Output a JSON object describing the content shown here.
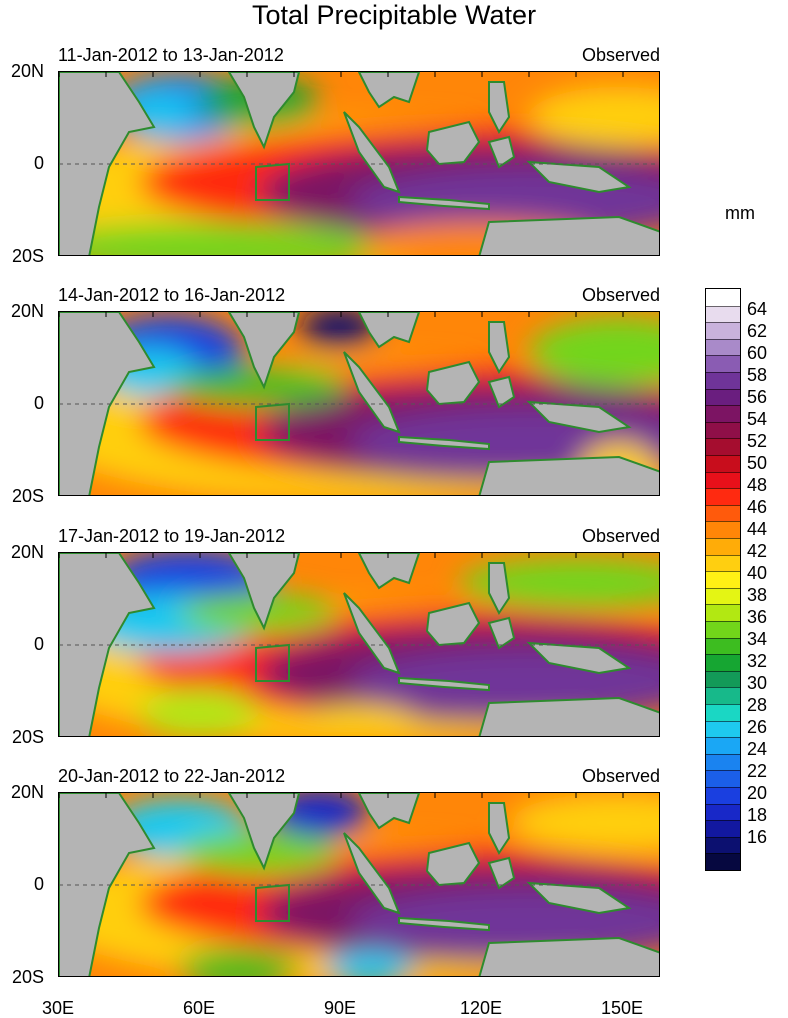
{
  "title": "Total Precipitable Water",
  "units": "mm",
  "panels": [
    {
      "date_range": "11-Jan-2012 to 13-Jan-2012",
      "label": "Observed"
    },
    {
      "date_range": "14-Jan-2012 to 16-Jan-2012",
      "label": "Observed"
    },
    {
      "date_range": "17-Jan-2012 to 19-Jan-2012",
      "label": "Observed"
    },
    {
      "date_range": "20-Jan-2012 to 22-Jan-2012",
      "label": "Observed"
    }
  ],
  "y_axis_labels": [
    "20N",
    "0",
    "20S"
  ],
  "x_axis_labels": [
    "30E",
    "60E",
    "90E",
    "120E",
    "150E"
  ],
  "colorbar": {
    "labels": [
      "64",
      "62",
      "60",
      "58",
      "56",
      "54",
      "52",
      "50",
      "48",
      "46",
      "44",
      "42",
      "40",
      "38",
      "36",
      "34",
      "32",
      "30",
      "28",
      "26",
      "24",
      "22",
      "20",
      "18",
      "16"
    ],
    "colors": [
      "#ffffff",
      "#e8dcee",
      "#c9b2dc",
      "#a98ac9",
      "#8a5cb3",
      "#6f3499",
      "#6a1e7f",
      "#7c1463",
      "#8f0f48",
      "#a50d2f",
      "#c80d1c",
      "#e8101a",
      "#ff2a10",
      "#ff5a0c",
      "#ff8608",
      "#ffac08",
      "#ffcf10",
      "#fff015",
      "#e4f514",
      "#b2e812",
      "#72d61a",
      "#3dbd20",
      "#16a632",
      "#139a58",
      "#17b98a",
      "#1ad7c4",
      "#1ec9ef",
      "#1aa7f5",
      "#1a83f0",
      "#1b5fe8",
      "#1a3fe0",
      "#1828c8",
      "#1218a0",
      "#0c1070",
      "#060840"
    ]
  },
  "colors": {
    "coastline": "#2e8b2e",
    "land": "#b4b4b4",
    "box": "#2e8b2e"
  }
}
